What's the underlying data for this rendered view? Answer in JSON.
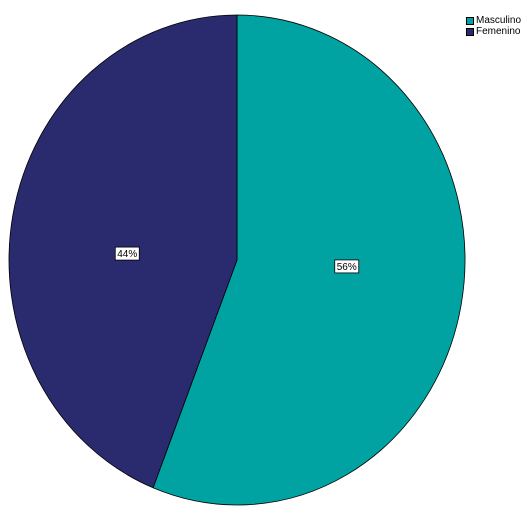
{
  "chart_data": {
    "type": "pie",
    "categories": [
      "Masculino",
      "Femenino"
    ],
    "values": [
      56,
      44
    ],
    "labels": [
      "56%",
      "44%"
    ],
    "colors": [
      "#00A2A2",
      "#2A2A6E"
    ],
    "title": "",
    "legend_placement": "top-right"
  }
}
